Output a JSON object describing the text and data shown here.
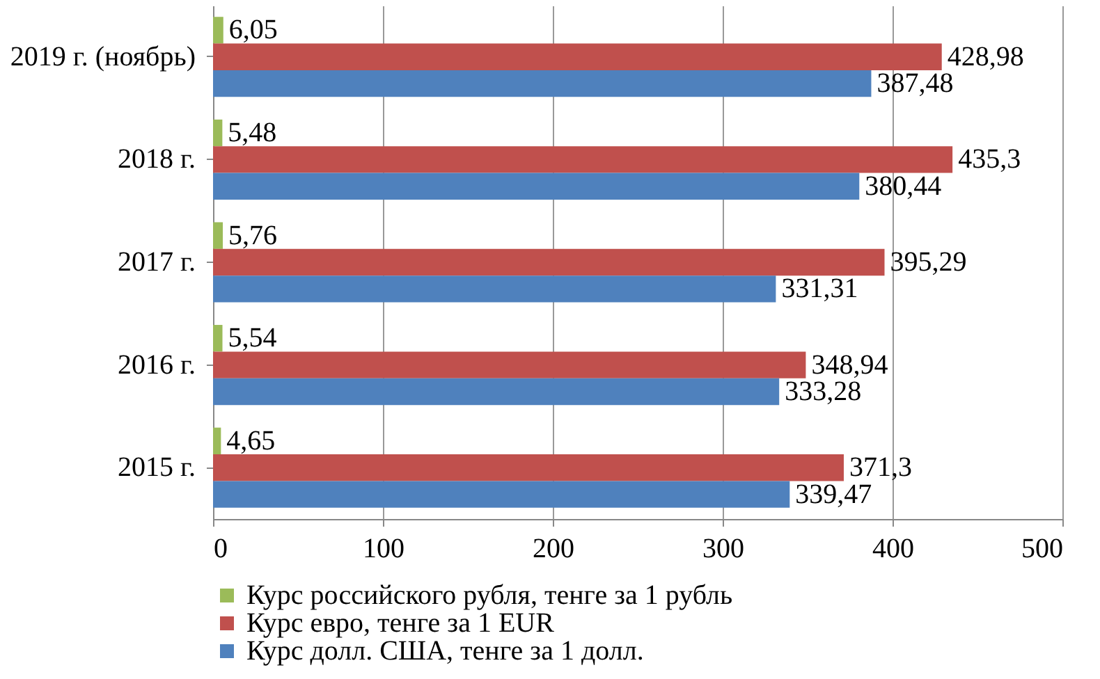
{
  "chart_data": {
    "type": "bar",
    "orientation": "horizontal",
    "categories": [
      "2019 г. (ноябрь)",
      "2018 г.",
      "2017 г.",
      "2016 г.",
      "2015 г."
    ],
    "series": [
      {
        "name": "Курс российского рубля, тенге за 1 рубль",
        "color": "#9bbb59",
        "values": [
          6.05,
          5.48,
          5.76,
          5.54,
          4.65
        ],
        "value_labels": [
          "6,05",
          "5,48",
          "5,76",
          "5,54",
          "4,65"
        ]
      },
      {
        "name": "Курс евро, тенге за 1  EUR",
        "color": "#c0504d",
        "values": [
          428.98,
          435.3,
          395.29,
          348.94,
          371.3
        ],
        "value_labels": [
          "428,98",
          "435,3",
          "395,29",
          "348,94",
          "371,3"
        ]
      },
      {
        "name": "Курс долл. США,  тенге за 1 долл.",
        "color": "#4f81bd",
        "values": [
          387.48,
          380.44,
          331.31,
          333.28,
          339.47
        ],
        "value_labels": [
          "387,48",
          "380,44",
          "331,31",
          "333,28",
          "339,47"
        ]
      }
    ],
    "xlim": [
      0,
      500
    ],
    "xticks": [
      0,
      100,
      200,
      300,
      400,
      500
    ],
    "grid": "x",
    "legend": "bottom"
  }
}
